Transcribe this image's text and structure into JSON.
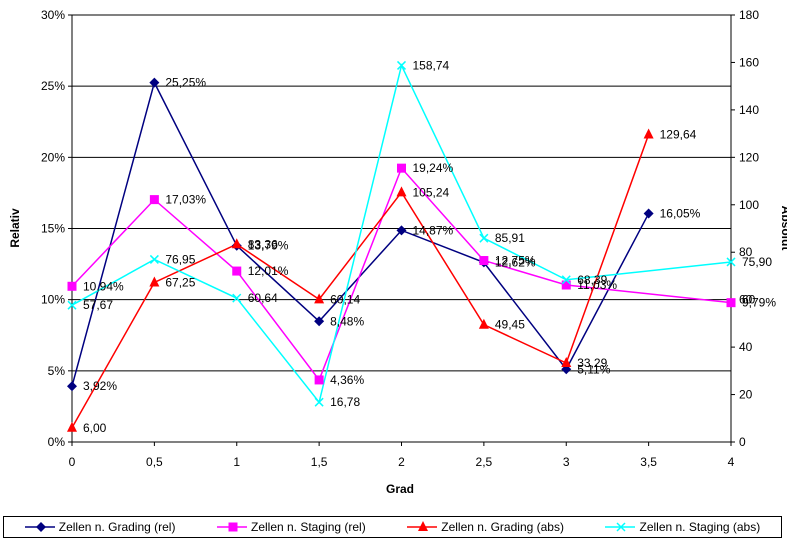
{
  "chart_data": {
    "type": "line",
    "x": [
      "0",
      "0,5",
      "1",
      "1,5",
      "2",
      "2,5",
      "3",
      "3,5",
      "4"
    ],
    "xlabel": "Grad",
    "ylabel_left": "Relativ",
    "ylabel_right": "Absolut",
    "y_left_ticks": [
      "0%",
      "5%",
      "10%",
      "15%",
      "20%",
      "25%",
      "30%"
    ],
    "y_right_ticks": [
      "0",
      "20",
      "40",
      "60",
      "80",
      "100",
      "120",
      "140",
      "160",
      "180"
    ],
    "ylim_left": [
      0,
      30
    ],
    "ylim_right": [
      0,
      180
    ],
    "grid": "horizontal",
    "legend_position": "bottom",
    "series": [
      {
        "name": "Zellen n. Grading (rel)",
        "axis": "left",
        "color": "#000080",
        "marker": "diamond",
        "points": [
          {
            "x": "0",
            "y": 3.92,
            "label": "3,92%"
          },
          {
            "x": "0,5",
            "y": 25.25,
            "label": "25,25%"
          },
          {
            "x": "1",
            "y": 13.79,
            "label": "13,79%"
          },
          {
            "x": "1,5",
            "y": 8.48,
            "label": "8,48%"
          },
          {
            "x": "2",
            "y": 14.87,
            "label": "14,87%"
          },
          {
            "x": "2,5",
            "y": 12.62,
            "label": "12,62%"
          },
          {
            "x": "3",
            "y": 5.11,
            "label": "5,11%"
          },
          {
            "x": "3,5",
            "y": 16.05,
            "label": "16,05%"
          }
        ]
      },
      {
        "name": "Zellen n. Staging (rel)",
        "axis": "left",
        "color": "#ff00ff",
        "marker": "square",
        "points": [
          {
            "x": "0",
            "y": 10.94,
            "label": "10,94%"
          },
          {
            "x": "0,5",
            "y": 17.03,
            "label": "17,03%"
          },
          {
            "x": "1",
            "y": 12.01,
            "label": "12,01%"
          },
          {
            "x": "1,5",
            "y": 4.36,
            "label": "4,36%"
          },
          {
            "x": "2",
            "y": 19.24,
            "label": "19,24%"
          },
          {
            "x": "2,5",
            "y": 12.75,
            "label": "12,75%"
          },
          {
            "x": "3",
            "y": 11.03,
            "label": "11,03%"
          },
          {
            "x": "4",
            "y": 9.79,
            "label": "9,79%"
          }
        ]
      },
      {
        "name": "Zellen n. Grading (abs)",
        "axis": "right",
        "color": "#ff0000",
        "marker": "triangle",
        "points": [
          {
            "x": "0",
            "y": 6.0,
            "label": "6,00"
          },
          {
            "x": "0,5",
            "y": 67.25,
            "label": "67,25"
          },
          {
            "x": "1",
            "y": 83.36,
            "label": "83,36"
          },
          {
            "x": "1,5",
            "y": 60.14,
            "label": "60,14"
          },
          {
            "x": "2",
            "y": 105.24,
            "label": "105,24"
          },
          {
            "x": "2,5",
            "y": 49.45,
            "label": "49,45"
          },
          {
            "x": "3",
            "y": 33.29,
            "label": "33,29"
          },
          {
            "x": "3,5",
            "y": 129.64,
            "label": "129,64"
          }
        ]
      },
      {
        "name": "Zellen n. Staging (abs)",
        "axis": "right",
        "color": "#00ffff",
        "marker": "x",
        "points": [
          {
            "x": "0",
            "y": 57.67,
            "label": "57,67"
          },
          {
            "x": "0,5",
            "y": 76.95,
            "label": "76,95"
          },
          {
            "x": "1",
            "y": 60.64,
            "label": "60,64"
          },
          {
            "x": "1,5",
            "y": 16.78,
            "label": "16,78"
          },
          {
            "x": "2",
            "y": 158.74,
            "label": "158,74"
          },
          {
            "x": "2,5",
            "y": 85.91,
            "label": "85,91"
          },
          {
            "x": "3",
            "y": 68.39,
            "label": "68,39"
          },
          {
            "x": "4",
            "y": 75.9,
            "label": "75,90"
          }
        ]
      }
    ]
  },
  "extra_labels": [
    {
      "x": "4",
      "y_axis": "right",
      "y": 60,
      "label": "60"
    }
  ]
}
